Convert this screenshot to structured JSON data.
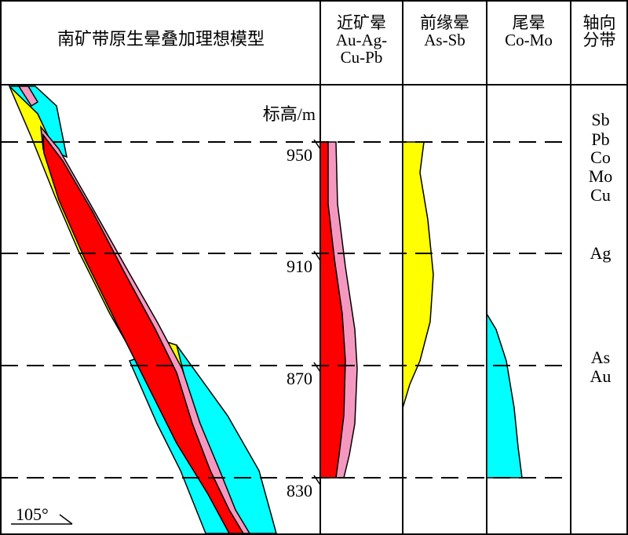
{
  "header": {
    "title": "南矿带原生晕叠加理想模型",
    "near_halo": {
      "line1": "近矿晕",
      "line2": "Au-Ag-",
      "line3": "Cu-Pb"
    },
    "front_halo": {
      "line1": "前缘晕",
      "line2": "As-Sb"
    },
    "tail_halo": {
      "line1": "尾晕",
      "line2": "Co-Mo"
    },
    "axial": {
      "line1": "轴向",
      "line2": "分带"
    }
  },
  "elevation_label": "标高/m",
  "elevations": [
    "950",
    "910",
    "870",
    "830"
  ],
  "axial_elements": [
    "Sb",
    "Pb",
    "Co",
    "Mo",
    "Cu",
    "Ag",
    "As",
    "Au"
  ],
  "dip_angle": "105°",
  "colors": {
    "red": "#ff0000",
    "pink": "#f598c0",
    "yellow": "#ffff00",
    "cyan": "#00ffff",
    "line": "#000000"
  }
}
